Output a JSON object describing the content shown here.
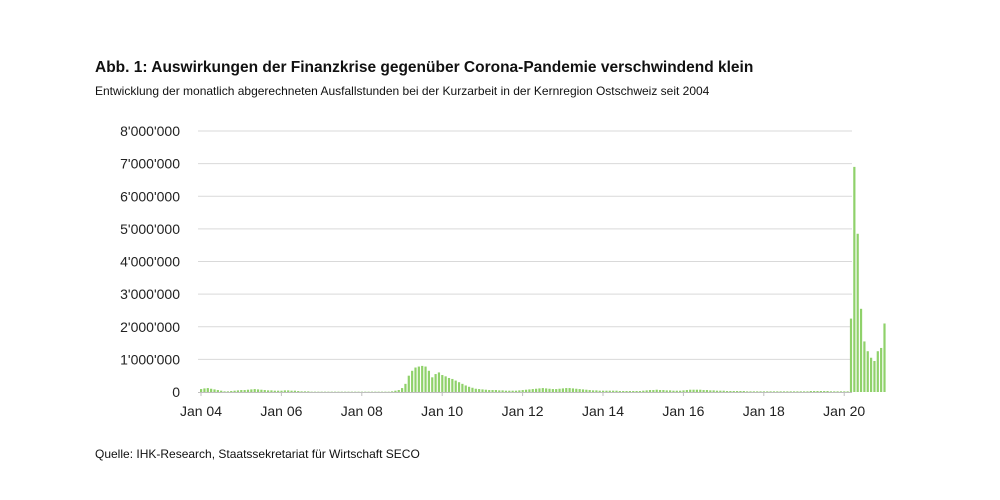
{
  "header": {
    "title": "Abb. 1: Auswirkungen der Finanzkrise gegenüber Corona-Pandemie verschwindend klein",
    "subtitle": "Entwicklung der monatlich abgerechneten Ausfallstunden bei der Kurzarbeit in der Kernregion Ostschweiz seit 2004"
  },
  "footer": {
    "source": "Quelle: IHK-Research, Staatssekretariat für Wirtschaft SECO"
  },
  "colors": {
    "bar": "#8fd16a",
    "grid": "#d9d9d9",
    "axis": "#bfbfbf"
  },
  "chart_data": {
    "type": "bar",
    "title": "Abb. 1: Auswirkungen der Finanzkrise gegenüber Corona-Pandemie verschwindend klein",
    "subtitle": "Entwicklung der monatlich abgerechneten Ausfallstunden bei der Kurzarbeit in der Kernregion Ostschweiz seit 2004",
    "xlabel": "",
    "ylabel": "",
    "ylim": [
      0,
      8000000
    ],
    "yticks": [
      0,
      1000000,
      2000000,
      3000000,
      4000000,
      5000000,
      6000000,
      7000000,
      8000000
    ],
    "ytick_labels": [
      "0",
      "1'000'000",
      "2'000'000",
      "3'000'000",
      "4'000'000",
      "5'000'000",
      "6'000'000",
      "7'000'000",
      "8'000'000"
    ],
    "xtick_labels": [
      "Jan 04",
      "Jan 06",
      "Jan 08",
      "Jan 10",
      "Jan 12",
      "Jan 14",
      "Jan 16",
      "Jan 18",
      "Jan 20"
    ],
    "grid": true,
    "start": "2004-01",
    "values": [
      90000,
      110000,
      120000,
      100000,
      80000,
      60000,
      40000,
      20000,
      20000,
      30000,
      40000,
      50000,
      60000,
      60000,
      70000,
      80000,
      90000,
      80000,
      70000,
      60000,
      50000,
      50000,
      40000,
      40000,
      40000,
      50000,
      50000,
      40000,
      40000,
      30000,
      20000,
      20000,
      20000,
      10000,
      10000,
      10000,
      10000,
      10000,
      10000,
      10000,
      10000,
      10000,
      10000,
      10000,
      10000,
      10000,
      10000,
      10000,
      10000,
      10000,
      10000,
      10000,
      10000,
      10000,
      10000,
      10000,
      10000,
      20000,
      40000,
      60000,
      120000,
      250000,
      500000,
      650000,
      750000,
      780000,
      800000,
      780000,
      650000,
      450000,
      550000,
      600000,
      520000,
      480000,
      430000,
      400000,
      350000,
      300000,
      250000,
      200000,
      160000,
      130000,
      100000,
      90000,
      80000,
      70000,
      60000,
      60000,
      60000,
      50000,
      50000,
      40000,
      40000,
      40000,
      40000,
      50000,
      60000,
      70000,
      80000,
      90000,
      100000,
      110000,
      120000,
      110000,
      100000,
      90000,
      90000,
      100000,
      110000,
      120000,
      120000,
      110000,
      100000,
      90000,
      80000,
      70000,
      60000,
      50000,
      50000,
      40000,
      40000,
      40000,
      40000,
      40000,
      40000,
      30000,
      30000,
      30000,
      30000,
      30000,
      30000,
      30000,
      40000,
      50000,
      60000,
      60000,
      70000,
      60000,
      60000,
      50000,
      50000,
      40000,
      40000,
      40000,
      50000,
      60000,
      70000,
      70000,
      70000,
      70000,
      60000,
      60000,
      50000,
      50000,
      40000,
      40000,
      40000,
      30000,
      30000,
      30000,
      30000,
      30000,
      30000,
      20000,
      20000,
      20000,
      20000,
      20000,
      20000,
      20000,
      20000,
      20000,
      20000,
      20000,
      20000,
      20000,
      20000,
      20000,
      20000,
      20000,
      20000,
      20000,
      30000,
      30000,
      30000,
      30000,
      30000,
      30000,
      20000,
      20000,
      20000,
      20000,
      20000,
      20000,
      2250000,
      6900000,
      4850000,
      2550000,
      1550000,
      1250000,
      1050000,
      950000,
      1250000,
      1350000,
      2100000
    ]
  }
}
